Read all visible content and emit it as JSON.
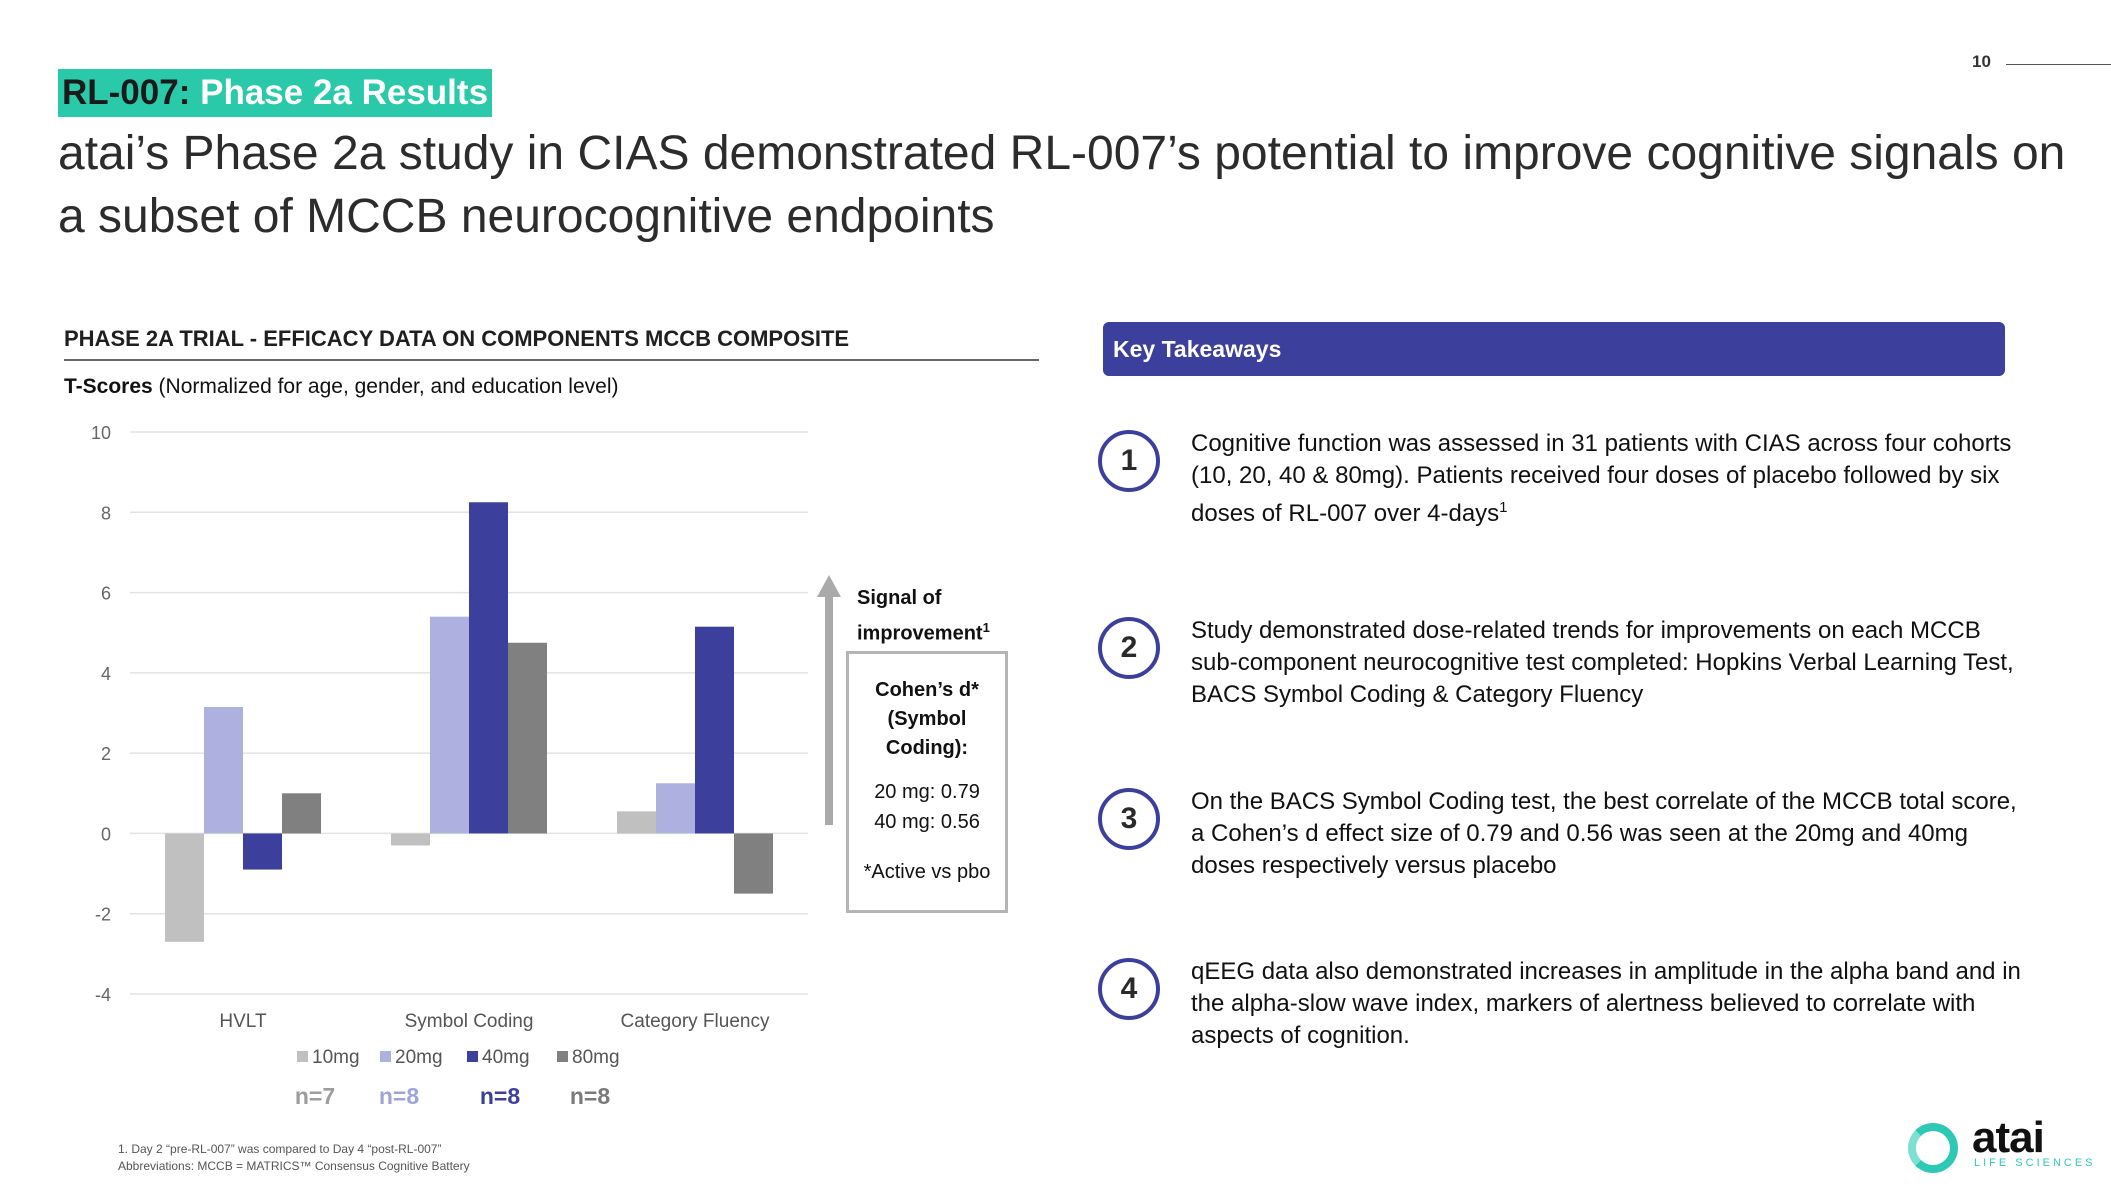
{
  "page": {
    "number": "10"
  },
  "header": {
    "tag_code": "RL-007:",
    "tag_title": " Phase 2a Results",
    "headline": "atai’s Phase 2a study in CIAS demonstrated RL-007’s potential to improve cognitive signals on a subset of MCCB neurocognitive endpoints"
  },
  "chart_section": {
    "heading": "PHASE 2A TRIAL - EFFICACY DATA ON COMPONENTS MCCB COMPOSITE",
    "tscores_label": "T-Scores",
    "tscores_note": " (Normalized for age, gender, and education level)"
  },
  "chart_data": {
    "type": "bar",
    "title": "PHASE 2A TRIAL - EFFICACY DATA ON COMPONENTS MCCB COMPOSITE",
    "ylabel": "T-Scores",
    "xlabel": "",
    "ylim": [
      -4,
      10
    ],
    "yticks": [
      "10",
      "8",
      "6",
      "4",
      "2",
      "0",
      "-2",
      "-4"
    ],
    "ytick_values": [
      10,
      8,
      6,
      4,
      2,
      0,
      -2,
      -4
    ],
    "grid": true,
    "legend_position": "bottom",
    "categories": [
      "HVLT",
      "Symbol Coding",
      "Category Fluency"
    ],
    "series": [
      {
        "name": "10mg",
        "n": "n=7",
        "color": "#c0c0c0",
        "values": [
          -2.7,
          -0.3,
          0.55
        ]
      },
      {
        "name": "20mg",
        "n": "n=8",
        "color": "#aeb1e0",
        "values": [
          3.15,
          5.4,
          1.25
        ]
      },
      {
        "name": "40mg",
        "n": "n=8",
        "color": "#3d3f9c",
        "values": [
          -0.9,
          8.25,
          5.15
        ]
      },
      {
        "name": "80mg",
        "n": "n=8",
        "color": "#808080",
        "values": [
          1.0,
          4.75,
          -1.5
        ]
      }
    ]
  },
  "signal": {
    "label_line1": "Signal of",
    "label_line2": "improvement",
    "label_sup": "1"
  },
  "cohen": {
    "title": "Cohen’s d* (Symbol Coding):",
    "line1": "20 mg:  0.79",
    "line2": "40 mg:  0.56",
    "note": "*Active vs pbo"
  },
  "takeaways": {
    "header": "Key Takeaways",
    "items": [
      {
        "num": "1",
        "text": "Cognitive function was assessed in 31 patients with CIAS across four cohorts (10, 20, 40 & 80mg). Patients received four doses of placebo followed by six doses of RL-007 over 4-days",
        "sup": "1"
      },
      {
        "num": "2",
        "text": "Study demonstrated dose-related trends for improvements on each MCCB sub-component neurocognitive test completed: Hopkins Verbal Learning Test, BACS Symbol Coding & Category Fluency"
      },
      {
        "num": "3",
        "text": "On the BACS Symbol Coding test, the best correlate of the MCCB total score, a Cohen’s d effect size of 0.79 and 0.56 was seen at the 20mg and 40mg doses respectively versus placebo"
      },
      {
        "num": "4",
        "text": "qEEG data also demonstrated increases in amplitude in the alpha band and in the alpha-slow wave index, markers of alertness believed to correlate with aspects of cognition."
      }
    ]
  },
  "footnotes": {
    "line1": "1.    Day 2 “pre-RL-007” was compared to Day 4 “post-RL-007”",
    "line2": "Abbreviations: MCCB =  MATRICS™ Consensus Cognitive Battery"
  },
  "logo": {
    "word": "atai",
    "sub": "LIFE SCIENCES"
  }
}
